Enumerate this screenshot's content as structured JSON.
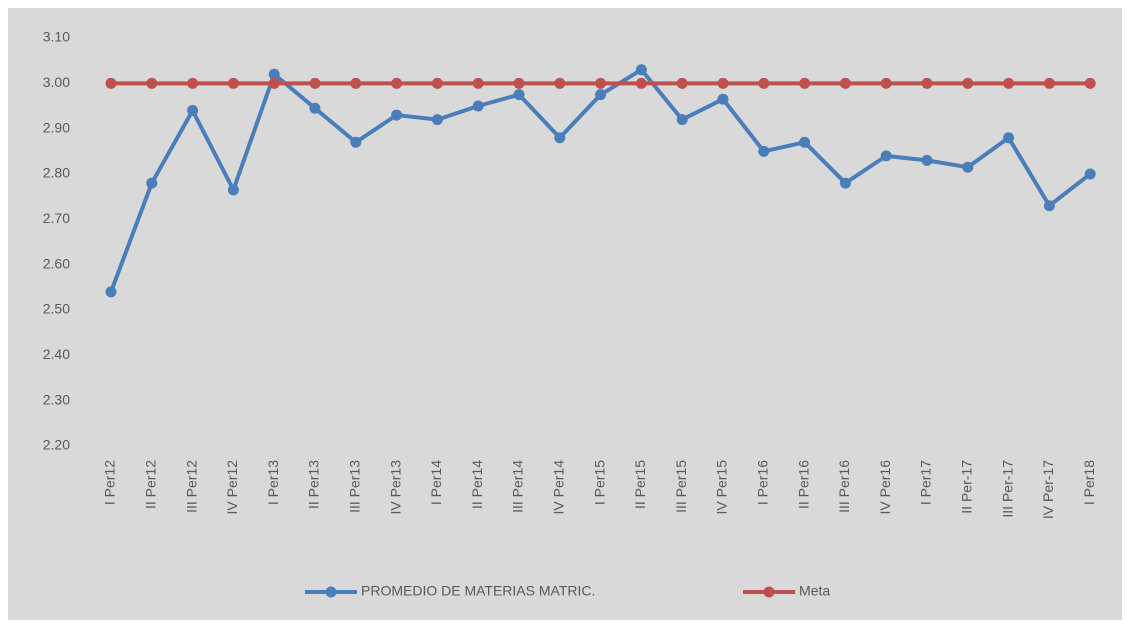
{
  "chart_data": {
    "type": "line",
    "categories": [
      "I Per12",
      "II Per12",
      "III Per12",
      "IV Per12",
      "I Per13",
      "II Per13",
      "III Per13",
      "IV Per13",
      "I Per14",
      "II Per14",
      "III Per14",
      "IV Per14",
      "I Per15",
      "II Per15",
      "III Per15",
      "IV Per15",
      "I Per16",
      "II Per16",
      "III Per16",
      "IV Per16",
      "I Per17",
      "II Per-17",
      "III Per-17",
      "IV Per-17",
      "I Per18"
    ],
    "series": [
      {
        "name": "PROMEDIO DE MATERIAS MATRIC.",
        "color": "#4a7ebb",
        "values": [
          2.54,
          2.78,
          2.94,
          2.765,
          3.02,
          2.945,
          2.87,
          2.93,
          2.92,
          2.95,
          2.975,
          2.88,
          2.975,
          3.03,
          2.92,
          2.965,
          2.85,
          2.87,
          2.78,
          2.84,
          2.83,
          2.815,
          2.88,
          2.73,
          2.8
        ]
      },
      {
        "name": "Meta",
        "color": "#c0504d",
        "values": [
          3.0,
          3.0,
          3.0,
          3.0,
          3.0,
          3.0,
          3.0,
          3.0,
          3.0,
          3.0,
          3.0,
          3.0,
          3.0,
          3.0,
          3.0,
          3.0,
          3.0,
          3.0,
          3.0,
          3.0,
          3.0,
          3.0,
          3.0,
          3.0,
          3.0
        ]
      }
    ],
    "ylim": [
      2.2,
      3.1
    ],
    "yticks": [
      {
        "value": 2.2,
        "label": "2.20"
      },
      {
        "value": 2.3,
        "label": "2.30"
      },
      {
        "value": 2.4,
        "label": "2.40"
      },
      {
        "value": 2.5,
        "label": "2.50"
      },
      {
        "value": 2.6,
        "label": "2.60"
      },
      {
        "value": 2.7,
        "label": "2.70"
      },
      {
        "value": 2.8,
        "label": "2.80"
      },
      {
        "value": 2.9,
        "label": "2.90"
      },
      {
        "value": 3.0,
        "label": "3.00"
      },
      {
        "value": 3.1,
        "label": "3.10"
      }
    ],
    "grid": false,
    "legend": "bottom"
  }
}
